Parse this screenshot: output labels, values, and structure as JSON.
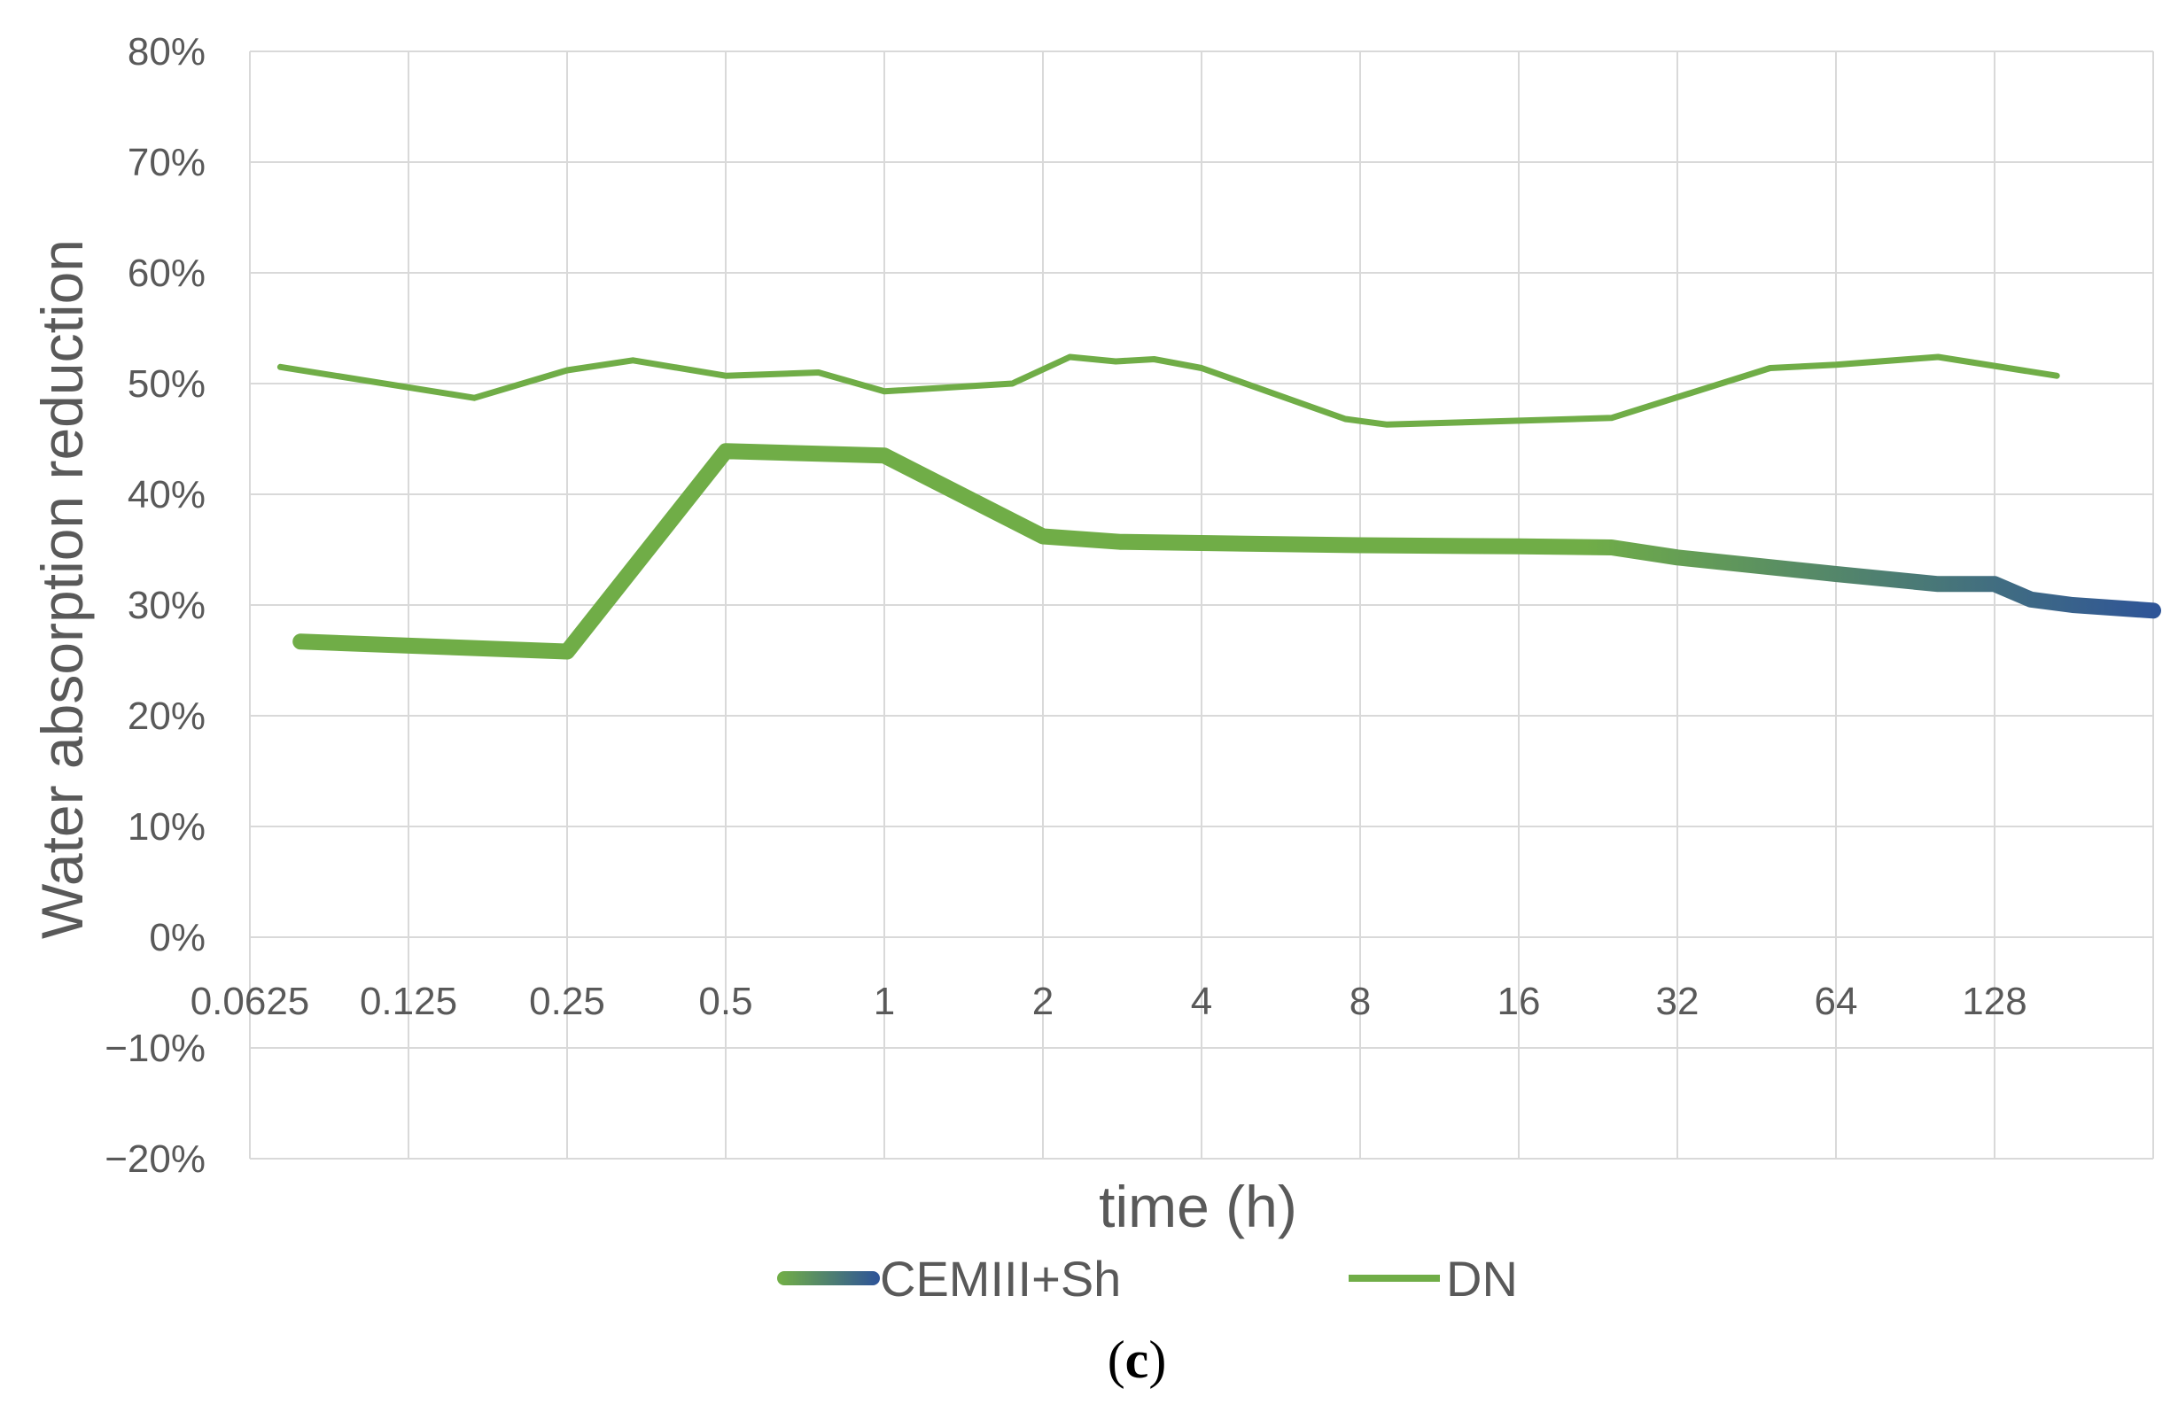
{
  "chart_data": {
    "type": "line",
    "x_scale": "log2",
    "x_ticks": [
      "0.0625",
      "0.125",
      "0.25",
      "0.5",
      "1",
      "2",
      "4",
      "8",
      "16",
      "32",
      "64",
      "128"
    ],
    "xlim": [
      0.0625,
      256
    ],
    "y_ticks": [
      "80%",
      "70%",
      "60%",
      "50%",
      "40%",
      "30%",
      "20%",
      "10%",
      "0%",
      "−10%",
      "−20%"
    ],
    "ylim": [
      -20,
      80
    ],
    "y_unit": "%",
    "xlabel": "time (h)",
    "ylabel": "Water absorption reduction",
    "grid": true,
    "legend_position": "bottom",
    "caption_open": "(",
    "caption_letter": "c",
    "caption_close": ")",
    "series": [
      {
        "name": "CEMIII+Sh",
        "style": "thick-gradient",
        "color_start": "#70ad47",
        "color_end": "#2f5597",
        "points": [
          [
            0.078,
            26.7
          ],
          [
            0.25,
            25.8
          ],
          [
            0.5,
            43.9
          ],
          [
            1.0,
            43.5
          ],
          [
            2.0,
            36.2
          ],
          [
            2.8,
            35.7
          ],
          [
            4.0,
            35.6
          ],
          [
            8.0,
            35.4
          ],
          [
            16.0,
            35.3
          ],
          [
            24.0,
            35.2
          ],
          [
            32.0,
            34.3
          ],
          [
            64.0,
            32.8
          ],
          [
            100.0,
            31.9
          ],
          [
            128.0,
            31.9
          ],
          [
            150.0,
            30.5
          ],
          [
            180.0,
            30.0
          ],
          [
            256.0,
            29.5
          ]
        ]
      },
      {
        "name": "DN",
        "style": "thin",
        "color": "#70ad47",
        "points": [
          [
            0.0714,
            51.5
          ],
          [
            0.1667,
            48.7
          ],
          [
            0.25,
            51.2
          ],
          [
            0.3333,
            52.1
          ],
          [
            0.5,
            50.7
          ],
          [
            0.75,
            51.0
          ],
          [
            1.0,
            49.3
          ],
          [
            1.75,
            50.0
          ],
          [
            2.25,
            52.4
          ],
          [
            2.75,
            52.0
          ],
          [
            3.25,
            52.2
          ],
          [
            4.0,
            51.4
          ],
          [
            7.5,
            46.8
          ],
          [
            9.0,
            46.3
          ],
          [
            24.0,
            46.9
          ],
          [
            48.0,
            51.4
          ],
          [
            64.0,
            51.7
          ],
          [
            100.0,
            52.4
          ],
          [
            168.0,
            50.7
          ]
        ]
      }
    ]
  }
}
